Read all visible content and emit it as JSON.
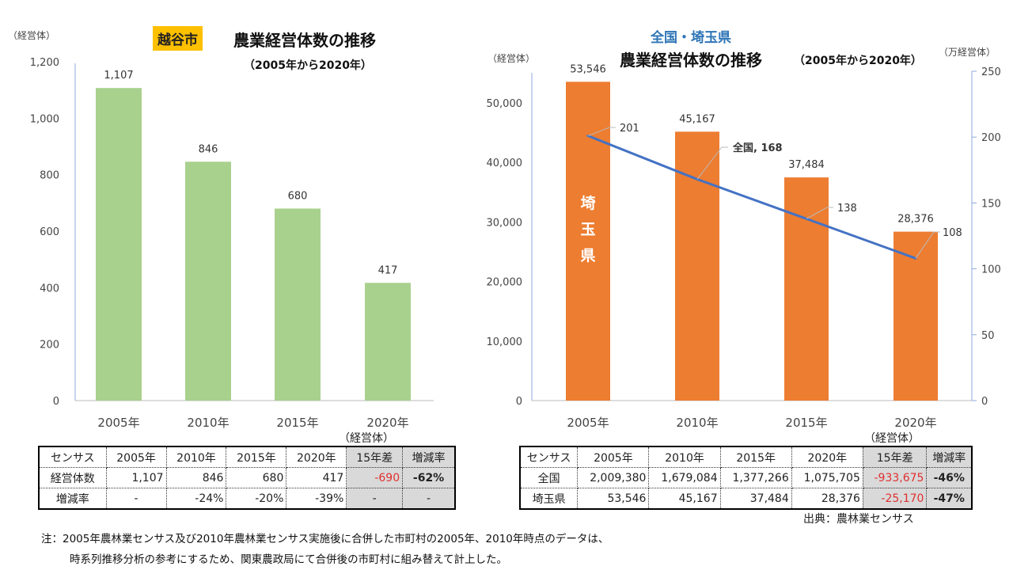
{
  "colors": {
    "bar_left": "#a9d18e",
    "bar_right": "#ed7d31",
    "line": "#4472c4",
    "badge": "#ffc000",
    "title_blue": "#2e75b6",
    "negative": "#e03030"
  },
  "chart_data": [
    {
      "type": "bar",
      "badge": "越谷市",
      "title": "農業経営体数の推移",
      "subtitle": "（2005年から2020年）",
      "ylabel": "（経営体）",
      "categories": [
        "2005年",
        "2010年",
        "2015年",
        "2020年"
      ],
      "values": [
        1107,
        846,
        680,
        417
      ],
      "data_labels": [
        "1,107",
        "846",
        "680",
        "417"
      ],
      "ylim": [
        0,
        1200
      ],
      "yticks": [
        "0",
        "200",
        "400",
        "600",
        "800",
        "1,000",
        "1,200"
      ],
      "grid": false
    },
    {
      "type": "bar+line",
      "title_top": "全国・埼玉県",
      "title": "農業経営体数の推移",
      "subtitle": "（2005年から2020年）",
      "ylabel_left": "（経営体）",
      "ylabel_right": "（万経営体）",
      "categories": [
        "2005年",
        "2010年",
        "2015年",
        "2020年"
      ],
      "bar_series": {
        "name": "埼玉県",
        "values": [
          53546,
          45167,
          37484,
          28376
        ],
        "data_labels": [
          "53,546",
          "45,167",
          "37,484",
          "28,376"
        ]
      },
      "line_series": {
        "name": "全国",
        "values": [
          201,
          168,
          138,
          108
        ],
        "data_labels": [
          "201",
          "全国, 168",
          "138",
          "108"
        ]
      },
      "ylim_left": [
        0,
        55000
      ],
      "yticks_left": [
        "0",
        "10,000",
        "20,000",
        "30,000",
        "40,000",
        "50,000"
      ],
      "ylim_right": [
        0,
        250
      ],
      "yticks_right": [
        "0",
        "50",
        "100",
        "150",
        "200",
        "250"
      ],
      "grid": false
    }
  ],
  "table_left": {
    "unit": "（経営体）",
    "header": [
      "センサス",
      "2005年",
      "2010年",
      "2015年",
      "2020年",
      "15年差",
      "増減率"
    ],
    "rows": [
      [
        "経営体数",
        "1,107",
        "846",
        "680",
        "417",
        "-690",
        "-62%"
      ],
      [
        "増減率",
        "-",
        "-24%",
        "-20%",
        "-39%",
        "-",
        "-"
      ]
    ]
  },
  "table_right": {
    "unit": "（経営体）",
    "header": [
      "センサス",
      "2005年",
      "2010年",
      "2015年",
      "2020年",
      "15年差",
      "増減率"
    ],
    "rows": [
      [
        "全国",
        "2,009,380",
        "1,679,084",
        "1,377,266",
        "1,075,705",
        "-933,675",
        "-46%"
      ],
      [
        "埼玉県",
        "53,546",
        "45,167",
        "37,484",
        "28,376",
        "-25,170",
        "-47%"
      ]
    ],
    "source": "出典：農林業センサス"
  },
  "notes": [
    "注：2005年農林業センサス及び2010年農林業センサス実施後に合併した市町村の2005年、2010年時点のデータは、",
    "時系列推移分析の参考にするため、関東農政局にて合併後の市町村に組み替えて計上した。"
  ]
}
